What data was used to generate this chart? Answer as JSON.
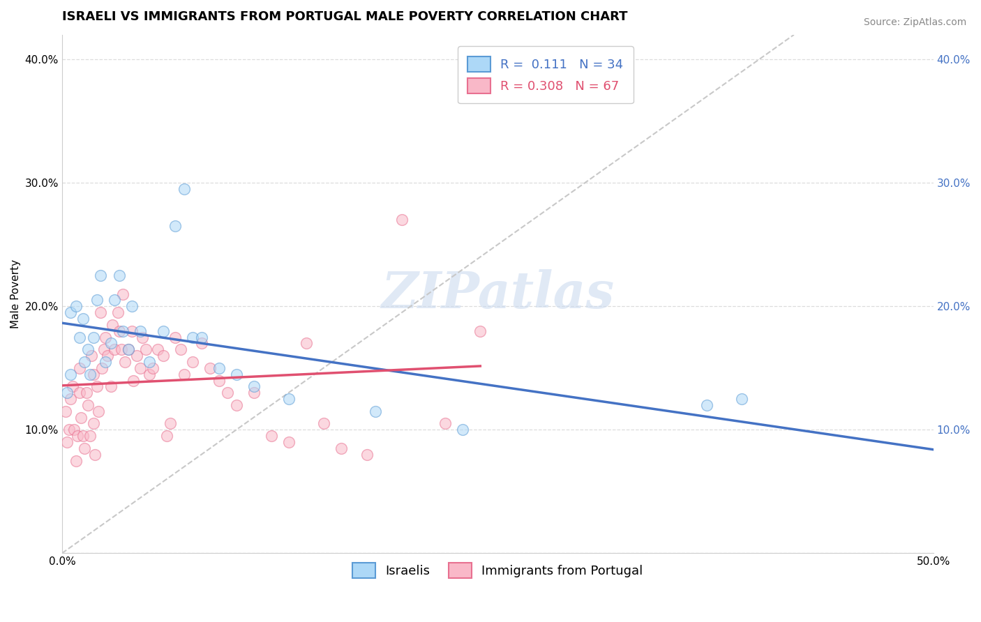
{
  "title": "ISRAELI VS IMMIGRANTS FROM PORTUGAL MALE POVERTY CORRELATION CHART",
  "source": "Source: ZipAtlas.com",
  "xlabel": "",
  "ylabel": "Male Poverty",
  "xlim": [
    0.0,
    0.5
  ],
  "ylim": [
    0.0,
    0.42
  ],
  "xticks": [
    0.0,
    0.1,
    0.2,
    0.3,
    0.4,
    0.5
  ],
  "xticklabels": [
    "0.0%",
    "",
    "",
    "",
    "",
    "50.0%"
  ],
  "yticks": [
    0.0,
    0.1,
    0.2,
    0.3,
    0.4
  ],
  "yticklabels": [
    "",
    "10.0%",
    "20.0%",
    "30.0%",
    "40.0%"
  ],
  "yticks_right": [
    0.1,
    0.2,
    0.3,
    0.4
  ],
  "yticklabels_right": [
    "10.0%",
    "20.0%",
    "30.0%",
    "40.0%"
  ],
  "israeli_color": "#ADD8F7",
  "portugal_color": "#F9B8C8",
  "israeli_edge_color": "#5B9BD5",
  "portugal_edge_color": "#E87090",
  "israeli_line_color": "#4472C4",
  "portugal_line_color": "#E05070",
  "trendline_color": "#C8C8C8",
  "R_israeli": 0.111,
  "N_israeli": 34,
  "R_portugal": 0.308,
  "N_portugal": 67,
  "legend_label_1": "Israelis",
  "legend_label_2": "Immigrants from Portugal",
  "israelis_x": [
    0.003,
    0.005,
    0.005,
    0.008,
    0.01,
    0.012,
    0.013,
    0.015,
    0.016,
    0.018,
    0.02,
    0.022,
    0.025,
    0.028,
    0.03,
    0.033,
    0.035,
    0.038,
    0.04,
    0.045,
    0.05,
    0.058,
    0.065,
    0.07,
    0.075,
    0.08,
    0.09,
    0.1,
    0.11,
    0.13,
    0.18,
    0.23,
    0.37,
    0.39
  ],
  "israelis_y": [
    0.13,
    0.145,
    0.195,
    0.2,
    0.175,
    0.19,
    0.155,
    0.165,
    0.145,
    0.175,
    0.205,
    0.225,
    0.155,
    0.17,
    0.205,
    0.225,
    0.18,
    0.165,
    0.2,
    0.18,
    0.155,
    0.18,
    0.265,
    0.295,
    0.175,
    0.175,
    0.15,
    0.145,
    0.135,
    0.125,
    0.115,
    0.1,
    0.12,
    0.125
  ],
  "portugal_x": [
    0.002,
    0.003,
    0.004,
    0.005,
    0.006,
    0.007,
    0.008,
    0.009,
    0.01,
    0.01,
    0.011,
    0.012,
    0.013,
    0.014,
    0.015,
    0.016,
    0.017,
    0.018,
    0.018,
    0.019,
    0.02,
    0.021,
    0.022,
    0.023,
    0.024,
    0.025,
    0.026,
    0.028,
    0.029,
    0.03,
    0.032,
    0.033,
    0.034,
    0.035,
    0.036,
    0.038,
    0.04,
    0.041,
    0.043,
    0.045,
    0.046,
    0.048,
    0.05,
    0.052,
    0.055,
    0.058,
    0.06,
    0.062,
    0.065,
    0.068,
    0.07,
    0.075,
    0.08,
    0.085,
    0.09,
    0.095,
    0.1,
    0.11,
    0.12,
    0.13,
    0.14,
    0.15,
    0.16,
    0.175,
    0.195,
    0.22,
    0.24
  ],
  "portugal_y": [
    0.115,
    0.09,
    0.1,
    0.125,
    0.135,
    0.1,
    0.075,
    0.095,
    0.13,
    0.15,
    0.11,
    0.095,
    0.085,
    0.13,
    0.12,
    0.095,
    0.16,
    0.105,
    0.145,
    0.08,
    0.135,
    0.115,
    0.195,
    0.15,
    0.165,
    0.175,
    0.16,
    0.135,
    0.185,
    0.165,
    0.195,
    0.18,
    0.165,
    0.21,
    0.155,
    0.165,
    0.18,
    0.14,
    0.16,
    0.15,
    0.175,
    0.165,
    0.145,
    0.15,
    0.165,
    0.16,
    0.095,
    0.105,
    0.175,
    0.165,
    0.145,
    0.155,
    0.17,
    0.15,
    0.14,
    0.13,
    0.12,
    0.13,
    0.095,
    0.09,
    0.17,
    0.105,
    0.085,
    0.08,
    0.27,
    0.105,
    0.18
  ],
  "background_color": "#FFFFFF",
  "grid_color": "#DDDDDD",
  "watermark_text": "ZIPatlas",
  "title_fontsize": 13,
  "axis_label_fontsize": 11,
  "tick_fontsize": 11,
  "legend_fontsize": 13,
  "marker_size": 130,
  "marker_alpha": 0.55
}
